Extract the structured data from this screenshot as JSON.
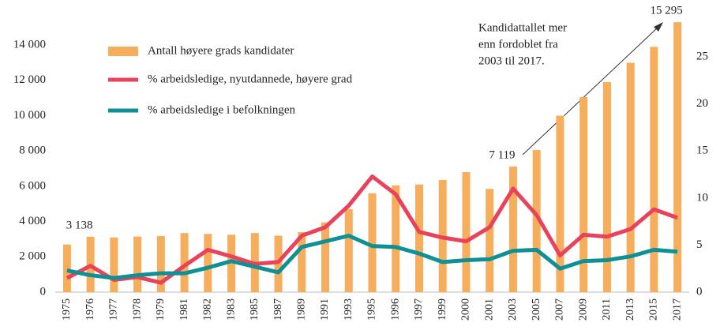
{
  "chart_data": {
    "type": "combo",
    "categories": [
      "1975",
      "1976",
      "1977",
      "1978",
      "1979",
      "1981",
      "1982",
      "1983",
      "1985",
      "1987",
      "1989",
      "1991",
      "1993",
      "1995",
      "1996",
      "1997",
      "1999",
      "2000",
      "2001",
      "2003",
      "2005",
      "2007",
      "2009",
      "2011",
      "2013",
      "2015",
      "2017"
    ],
    "series": [
      {
        "name": "Antall høyere grads kandidater",
        "type": "bar",
        "axis": "y",
        "color": "#f6ae5c",
        "values": [
          2700,
          3138,
          3100,
          3150,
          3180,
          3350,
          3300,
          3250,
          3350,
          3200,
          3400,
          3950,
          4700,
          5600,
          6050,
          6100,
          6350,
          6800,
          5850,
          7119,
          8050,
          10000,
          11050,
          11900,
          13000,
          13900,
          15295
        ],
        "value_labels": [
          null,
          "3 138",
          null,
          null,
          null,
          null,
          null,
          null,
          null,
          null,
          null,
          null,
          null,
          null,
          null,
          null,
          null,
          null,
          null,
          "7 119",
          null,
          null,
          null,
          null,
          null,
          null,
          "15 295"
        ]
      },
      {
        "name": "% arbeidsledige, nyutdannede, høyere grad",
        "type": "line",
        "axis": "y2",
        "color": "#e8435a",
        "values": [
          1.5,
          2.8,
          1.3,
          1.6,
          1.0,
          2.8,
          4.5,
          3.8,
          3.0,
          3.2,
          6.0,
          6.9,
          9.2,
          12.3,
          10.4,
          6.4,
          5.8,
          5.4,
          6.9,
          11.0,
          8.2,
          3.9,
          6.1,
          5.9,
          6.7,
          8.8,
          7.9
        ]
      },
      {
        "name": "% arbeidsledige i befolkningen",
        "type": "line",
        "axis": "y2",
        "color": "#0f8f96",
        "values": [
          2.3,
          1.8,
          1.5,
          1.8,
          2.0,
          2.0,
          2.6,
          3.3,
          2.7,
          2.1,
          4.8,
          5.4,
          6.0,
          4.9,
          4.8,
          4.1,
          3.2,
          3.4,
          3.5,
          4.4,
          4.5,
          2.5,
          3.3,
          3.4,
          3.8,
          4.5,
          4.3
        ]
      }
    ],
    "ylim": [
      0,
      15300
    ],
    "yticks": [
      0,
      {
        "value": 2000,
        "label": "2 000"
      },
      {
        "value": 4000,
        "label": "4 000"
      },
      {
        "value": 6000,
        "label": "6 000"
      },
      {
        "value": 8000,
        "label": "8 000"
      },
      {
        "value": 10000,
        "label": "10 000"
      },
      {
        "value": 12000,
        "label": "12 000"
      },
      {
        "value": 14000,
        "label": "14 000"
      }
    ],
    "y2lim": [
      0,
      28.7
    ],
    "y2ticks": [
      0,
      5,
      10,
      15,
      20,
      25
    ],
    "legend": "top-left",
    "grid": false,
    "annotation": {
      "lines": [
        "Kandidattallet mer",
        "enn fordoblet fra",
        "2003 til 2017."
      ]
    }
  }
}
